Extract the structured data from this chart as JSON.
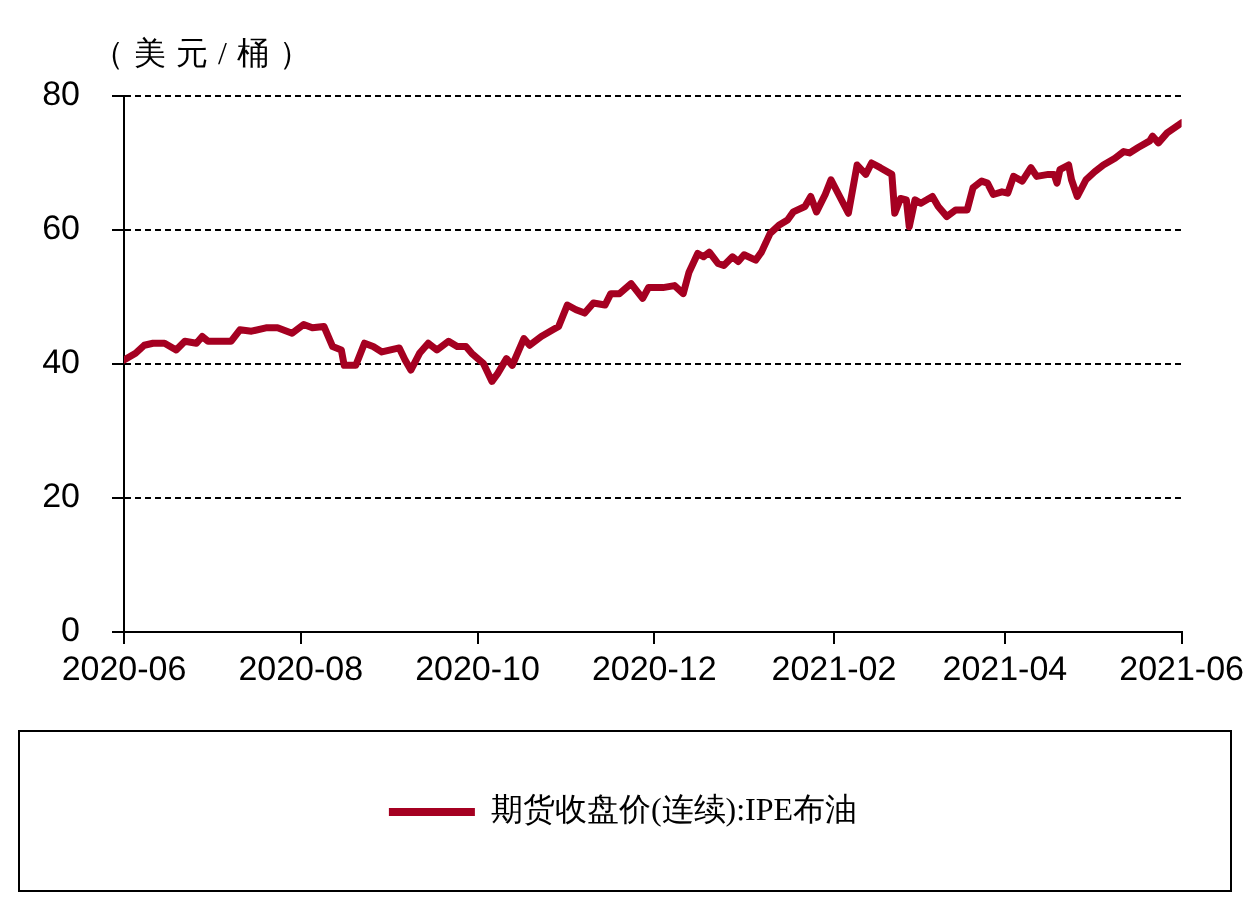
{
  "chart_data": {
    "type": "line",
    "ylabel": "（美元/桶）",
    "x": [
      "2020-06-01",
      "2020-06-05",
      "2020-06-08",
      "2020-06-11",
      "2020-06-15",
      "2020-06-19",
      "2020-06-22",
      "2020-06-26",
      "2020-06-28",
      "2020-06-30",
      "2020-07-08",
      "2020-07-11",
      "2020-07-15",
      "2020-07-20",
      "2020-07-24",
      "2020-07-29",
      "2020-08-02",
      "2020-08-05",
      "2020-08-09",
      "2020-08-12",
      "2020-08-15",
      "2020-08-16",
      "2020-08-20",
      "2020-08-23",
      "2020-08-26",
      "2020-08-29",
      "2020-09-04",
      "2020-09-06",
      "2020-09-08",
      "2020-09-11",
      "2020-09-14",
      "2020-09-17",
      "2020-09-21",
      "2020-09-24",
      "2020-09-27",
      "2020-09-29",
      "2020-10-03",
      "2020-10-06",
      "2020-10-08",
      "2020-10-11",
      "2020-10-13",
      "2020-10-17",
      "2020-10-19",
      "2020-10-23",
      "2020-10-27",
      "2020-10-29",
      "2020-11-01",
      "2020-11-04",
      "2020-11-07",
      "2020-11-10",
      "2020-11-14",
      "2020-11-16",
      "2020-11-19",
      "2020-11-23",
      "2020-11-27",
      "2020-11-29",
      "2020-12-02",
      "2020-12-04",
      "2020-12-08",
      "2020-12-11",
      "2020-12-13",
      "2020-12-16",
      "2020-12-18",
      "2020-12-20",
      "2020-12-23",
      "2020-12-25",
      "2020-12-28",
      "2020-12-30",
      "2021-01-01",
      "2021-01-05",
      "2021-01-07",
      "2021-01-10",
      "2021-01-13",
      "2021-01-16",
      "2021-01-18",
      "2021-01-22",
      "2021-01-24",
      "2021-01-26",
      "2021-01-29",
      "2021-01-31",
      "2021-02-03",
      "2021-02-06",
      "2021-02-09",
      "2021-02-12",
      "2021-02-14",
      "2021-02-17",
      "2021-02-21",
      "2021-02-22",
      "2021-02-24",
      "2021-02-26",
      "2021-02-27",
      "2021-03-01",
      "2021-03-03",
      "2021-03-07",
      "2021-03-09",
      "2021-03-12",
      "2021-03-15",
      "2021-03-19",
      "2021-03-21",
      "2021-03-24",
      "2021-03-26",
      "2021-03-28",
      "2021-03-31",
      "2021-04-02",
      "2021-04-04",
      "2021-04-07",
      "2021-04-10",
      "2021-04-12",
      "2021-04-16",
      "2021-04-18",
      "2021-04-19",
      "2021-04-20",
      "2021-04-23",
      "2021-04-24",
      "2021-04-26",
      "2021-04-29",
      "2021-05-02",
      "2021-05-05",
      "2021-05-09",
      "2021-05-12",
      "2021-05-14",
      "2021-05-17",
      "2021-05-21",
      "2021-05-22",
      "2021-05-24",
      "2021-05-27",
      "2021-05-31",
      "2021-06-01"
    ],
    "series": [
      {
        "name": "期货收盘价(连续):IPE布油",
        "color": "#a50021",
        "values": [
          40.6,
          41.6,
          42.8,
          43.1,
          43.1,
          42.1,
          43.4,
          43.1,
          44.1,
          43.4,
          43.4,
          45.1,
          44.9,
          45.4,
          45.4,
          44.6,
          45.9,
          45.4,
          45.6,
          42.6,
          42.1,
          39.8,
          39.8,
          43.1,
          42.6,
          41.8,
          42.4,
          40.6,
          39.1,
          41.6,
          43.1,
          42.1,
          43.4,
          42.6,
          42.6,
          41.6,
          40.1,
          37.4,
          38.6,
          40.8,
          39.8,
          43.8,
          42.8,
          44.1,
          45.1,
          45.6,
          48.8,
          48.1,
          47.6,
          49.1,
          48.8,
          50.5,
          50.5,
          52.0,
          49.8,
          51.4,
          51.4,
          51.4,
          51.7,
          50.5,
          53.7,
          56.5,
          56.0,
          56.7,
          55.0,
          54.7,
          56.0,
          55.3,
          56.3,
          55.5,
          56.7,
          59.5,
          60.7,
          61.5,
          62.7,
          63.5,
          65.0,
          62.7,
          65.3,
          67.5,
          65.0,
          62.5,
          69.7,
          68.3,
          70.0,
          69.3,
          68.3,
          62.5,
          64.7,
          64.5,
          60.5,
          64.5,
          64.0,
          65.0,
          63.5,
          62.0,
          63.0,
          63.0,
          66.3,
          67.3,
          67.0,
          65.3,
          65.7,
          65.5,
          68.0,
          67.3,
          69.3,
          68.0,
          68.3,
          68.3,
          67.0,
          69.0,
          69.7,
          67.5,
          65.0,
          67.5,
          68.7,
          69.7,
          70.7,
          71.7,
          71.5,
          72.3,
          73.3,
          74.0,
          73.0,
          74.5,
          75.7,
          76.0
        ]
      }
    ],
    "xlim": [
      "2020-06",
      "2021-06"
    ],
    "xticks": [
      "2020-06",
      "2020-08",
      "2020-10",
      "2020-12",
      "2021-02",
      "2021-04",
      "2021-06"
    ],
    "ylim": [
      0,
      80
    ],
    "yticks": [
      0,
      20,
      40,
      60,
      80
    ],
    "grid": "y",
    "legend": "bottom",
    "marker": "none",
    "line_style": "solid"
  }
}
